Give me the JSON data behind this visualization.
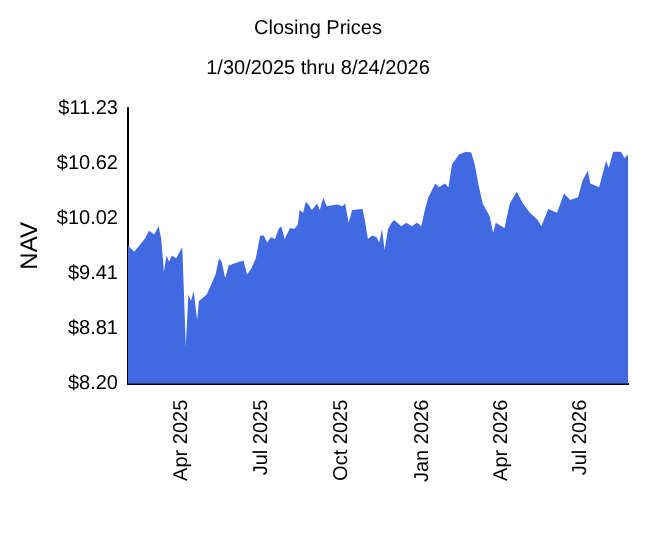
{
  "chart_data": {
    "type": "area",
    "title": "Closing Prices",
    "subtitle": "1/30/2025 thru 8/24/2026",
    "ylabel": "NAV",
    "x": [
      "2025-01-30",
      "2025-02-06",
      "2025-02-12",
      "2025-02-18",
      "2025-02-23",
      "2025-03-01",
      "2025-03-06",
      "2025-03-09",
      "2025-03-12",
      "2025-03-15",
      "2025-03-18",
      "2025-03-21",
      "2025-03-26",
      "2025-04-02",
      "2025-04-04",
      "2025-04-06",
      "2025-04-09",
      "2025-04-12",
      "2025-04-15",
      "2025-04-19",
      "2025-04-21",
      "2025-04-30",
      "2025-05-05",
      "2025-05-10",
      "2025-05-14",
      "2025-05-17",
      "2025-05-21",
      "2025-05-25",
      "2025-06-06",
      "2025-06-11",
      "2025-06-15",
      "2025-06-20",
      "2025-06-25",
      "2025-06-30",
      "2025-07-04",
      "2025-07-08",
      "2025-07-12",
      "2025-07-17",
      "2025-07-21",
      "2025-07-24",
      "2025-07-28",
      "2025-08-03",
      "2025-08-08",
      "2025-08-12",
      "2025-08-14",
      "2025-08-18",
      "2025-08-21",
      "2025-08-24",
      "2025-08-28",
      "2025-09-03",
      "2025-09-06",
      "2025-09-10",
      "2025-09-14",
      "2025-09-26",
      "2025-10-02",
      "2025-10-05",
      "2025-10-09",
      "2025-10-13",
      "2025-10-25",
      "2025-10-28",
      "2025-10-31",
      "2025-11-05",
      "2025-11-10",
      "2025-11-13",
      "2025-11-16",
      "2025-11-19",
      "2025-11-23",
      "2025-11-27",
      "2025-11-30",
      "2025-12-08",
      "2025-12-14",
      "2025-12-20",
      "2025-12-26",
      "2025-12-31",
      "2026-01-04",
      "2026-01-08",
      "2026-01-16",
      "2026-01-20",
      "2026-01-27",
      "2026-01-31",
      "2026-02-04",
      "2026-02-12",
      "2026-02-20",
      "2026-02-26",
      "2026-03-02",
      "2026-03-06",
      "2026-03-11",
      "2026-03-19",
      "2026-03-23",
      "2026-03-26",
      "2026-04-05",
      "2026-04-11",
      "2026-04-19",
      "2026-04-26",
      "2026-05-04",
      "2026-05-13",
      "2026-05-17",
      "2026-05-25",
      "2026-06-04",
      "2026-06-12",
      "2026-06-19",
      "2026-06-28",
      "2026-07-03",
      "2026-07-09",
      "2026-07-12",
      "2026-07-22",
      "2026-07-30",
      "2026-08-02",
      "2026-08-07",
      "2026-08-16",
      "2026-08-20",
      "2026-08-24"
    ],
    "series": [
      {
        "color": "#4169e1",
        "values": [
          9.72,
          9.65,
          9.72,
          9.79,
          9.88,
          9.84,
          9.93,
          9.79,
          9.43,
          9.61,
          9.54,
          9.61,
          9.58,
          9.7,
          9.18,
          8.61,
          9.18,
          9.11,
          9.22,
          8.9,
          9.11,
          9.18,
          9.29,
          9.4,
          9.58,
          9.54,
          9.36,
          9.5,
          9.54,
          9.55,
          9.4,
          9.47,
          9.58,
          9.83,
          9.83,
          9.75,
          9.81,
          9.79,
          9.9,
          9.93,
          9.79,
          9.91,
          9.9,
          9.95,
          10.11,
          10.08,
          10.2,
          10.17,
          10.11,
          10.18,
          10.11,
          10.24,
          10.15,
          10.17,
          10.15,
          10.18,
          9.97,
          10.11,
          10.12,
          9.97,
          9.79,
          9.83,
          9.81,
          9.75,
          9.9,
          9.67,
          9.9,
          9.97,
          10.0,
          9.93,
          9.97,
          9.93,
          9.97,
          9.93,
          10.11,
          10.25,
          10.4,
          10.36,
          10.4,
          10.36,
          10.61,
          10.72,
          10.75,
          10.74,
          10.61,
          10.4,
          10.18,
          10.04,
          9.86,
          9.97,
          9.91,
          10.18,
          10.31,
          10.18,
          10.08,
          10.0,
          9.93,
          10.12,
          10.08,
          10.29,
          10.22,
          10.25,
          10.43,
          10.54,
          10.4,
          10.36,
          10.65,
          10.57,
          10.75,
          10.75,
          10.68,
          10.72
        ]
      }
    ],
    "xlim": [
      "2025-01-30",
      "2026-08-24"
    ],
    "xticks": [
      {
        "value": "2025-04-01",
        "label": "Apr 2025"
      },
      {
        "value": "2025-07-01",
        "label": "Jul 2025"
      },
      {
        "value": "2025-10-01",
        "label": "Oct 2025"
      },
      {
        "value": "2026-01-01",
        "label": "Jan 2026"
      },
      {
        "value": "2026-04-01",
        "label": "Apr 2026"
      },
      {
        "value": "2026-07-01",
        "label": "Jul 2026"
      }
    ],
    "ylim": [
      8.2,
      11.23
    ],
    "yticks": [
      {
        "value": 8.2,
        "label": "$8.20"
      },
      {
        "value": 8.81,
        "label": "$8.81"
      },
      {
        "value": 9.41,
        "label": "$9.41"
      },
      {
        "value": 10.02,
        "label": "$10.02"
      },
      {
        "value": 10.62,
        "label": "$10.62"
      },
      {
        "value": 11.23,
        "label": "$11.23"
      }
    ],
    "grid": false,
    "legend": false
  }
}
